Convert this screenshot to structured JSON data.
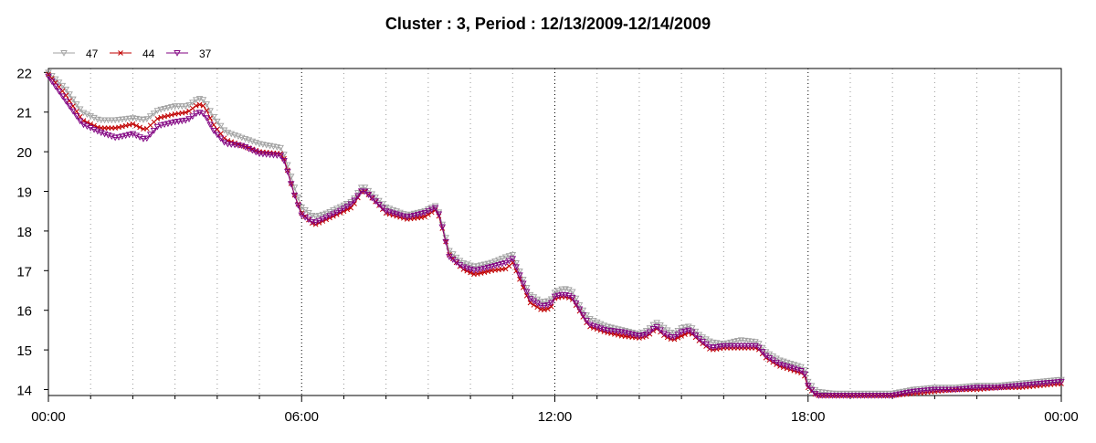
{
  "chart_data": {
    "type": "line",
    "title": "Cluster : 3, Period : 12/13/2009-12/14/2009",
    "xlabel": "",
    "ylabel": "",
    "x_unit": "hours",
    "xlim": [
      0,
      24
    ],
    "ylim": [
      13.85,
      22.1
    ],
    "y_ticks": [
      14,
      15,
      16,
      17,
      18,
      19,
      20,
      21,
      22
    ],
    "x_ticks": [
      {
        "x": 0,
        "label": "00:00"
      },
      {
        "x": 6,
        "label": "06:00"
      },
      {
        "x": 12,
        "label": "12:00"
      },
      {
        "x": 18,
        "label": "18:00"
      },
      {
        "x": 24,
        "label": "00:00"
      }
    ],
    "grid": "dotted",
    "legend_position": "top-left",
    "series": [
      {
        "name": "47",
        "color": "#a0a0a0",
        "marker": "triangle-down",
        "points": [
          [
            0,
            22.0
          ],
          [
            0.4,
            21.6
          ],
          [
            0.8,
            21.0
          ],
          [
            1.2,
            20.8
          ],
          [
            1.6,
            20.8
          ],
          [
            2.0,
            20.85
          ],
          [
            2.3,
            20.8
          ],
          [
            2.6,
            21.05
          ],
          [
            3.0,
            21.15
          ],
          [
            3.3,
            21.15
          ],
          [
            3.55,
            21.35
          ],
          [
            3.7,
            21.3
          ],
          [
            3.9,
            20.9
          ],
          [
            4.2,
            20.5
          ],
          [
            4.6,
            20.35
          ],
          [
            5.0,
            20.2
          ],
          [
            5.5,
            20.1
          ],
          [
            5.6,
            19.9
          ],
          [
            5.8,
            19.2
          ],
          [
            6.0,
            18.6
          ],
          [
            6.3,
            18.35
          ],
          [
            6.6,
            18.45
          ],
          [
            6.9,
            18.6
          ],
          [
            7.2,
            18.75
          ],
          [
            7.45,
            19.15
          ],
          [
            7.7,
            18.9
          ],
          [
            8.0,
            18.6
          ],
          [
            8.5,
            18.4
          ],
          [
            8.9,
            18.5
          ],
          [
            9.2,
            18.65
          ],
          [
            9.3,
            18.3
          ],
          [
            9.5,
            17.5
          ],
          [
            9.8,
            17.2
          ],
          [
            10.1,
            17.1
          ],
          [
            10.5,
            17.2
          ],
          [
            10.85,
            17.35
          ],
          [
            11.0,
            17.4
          ],
          [
            11.2,
            16.9
          ],
          [
            11.4,
            16.4
          ],
          [
            11.7,
            16.2
          ],
          [
            11.9,
            16.25
          ],
          [
            12.0,
            16.45
          ],
          [
            12.2,
            16.55
          ],
          [
            12.4,
            16.5
          ],
          [
            12.6,
            16.1
          ],
          [
            12.8,
            15.8
          ],
          [
            13.2,
            15.6
          ],
          [
            13.6,
            15.5
          ],
          [
            14.0,
            15.4
          ],
          [
            14.2,
            15.5
          ],
          [
            14.4,
            15.7
          ],
          [
            14.6,
            15.55
          ],
          [
            14.8,
            15.4
          ],
          [
            15.0,
            15.55
          ],
          [
            15.2,
            15.6
          ],
          [
            15.45,
            15.35
          ],
          [
            15.7,
            15.2
          ],
          [
            16.0,
            15.15
          ],
          [
            16.4,
            15.25
          ],
          [
            16.8,
            15.2
          ],
          [
            17.0,
            14.95
          ],
          [
            17.3,
            14.75
          ],
          [
            17.6,
            14.65
          ],
          [
            17.9,
            14.55
          ],
          [
            18.0,
            14.2
          ],
          [
            18.2,
            13.95
          ],
          [
            18.6,
            13.9
          ],
          [
            19.0,
            13.9
          ],
          [
            19.5,
            13.9
          ],
          [
            20.0,
            13.9
          ],
          [
            20.5,
            14.0
          ],
          [
            21.0,
            14.05
          ],
          [
            21.5,
            14.05
          ],
          [
            22.0,
            14.1
          ],
          [
            22.5,
            14.1
          ],
          [
            23.0,
            14.15
          ],
          [
            23.5,
            14.2
          ],
          [
            24.0,
            14.25
          ]
        ]
      },
      {
        "name": "44",
        "color": "#c00000",
        "marker": "x",
        "points": [
          [
            0,
            21.95
          ],
          [
            0.4,
            21.45
          ],
          [
            0.8,
            20.8
          ],
          [
            1.2,
            20.6
          ],
          [
            1.6,
            20.6
          ],
          [
            2.0,
            20.7
          ],
          [
            2.3,
            20.55
          ],
          [
            2.6,
            20.85
          ],
          [
            3.0,
            20.95
          ],
          [
            3.3,
            21.0
          ],
          [
            3.55,
            21.2
          ],
          [
            3.7,
            21.15
          ],
          [
            3.9,
            20.7
          ],
          [
            4.2,
            20.3
          ],
          [
            4.6,
            20.15
          ],
          [
            5.0,
            20.0
          ],
          [
            5.5,
            19.95
          ],
          [
            5.6,
            19.8
          ],
          [
            5.8,
            19.0
          ],
          [
            6.0,
            18.45
          ],
          [
            6.3,
            18.15
          ],
          [
            6.6,
            18.3
          ],
          [
            6.9,
            18.45
          ],
          [
            7.2,
            18.6
          ],
          [
            7.45,
            19.05
          ],
          [
            7.7,
            18.8
          ],
          [
            8.0,
            18.45
          ],
          [
            8.5,
            18.3
          ],
          [
            8.9,
            18.35
          ],
          [
            9.2,
            18.55
          ],
          [
            9.3,
            18.2
          ],
          [
            9.5,
            17.4
          ],
          [
            9.8,
            17.05
          ],
          [
            10.1,
            16.9
          ],
          [
            10.5,
            17.0
          ],
          [
            10.85,
            17.05
          ],
          [
            11.0,
            17.2
          ],
          [
            11.2,
            16.7
          ],
          [
            11.4,
            16.2
          ],
          [
            11.7,
            16.0
          ],
          [
            11.9,
            16.05
          ],
          [
            12.0,
            16.3
          ],
          [
            12.2,
            16.35
          ],
          [
            12.4,
            16.3
          ],
          [
            12.6,
            15.95
          ],
          [
            12.8,
            15.6
          ],
          [
            13.2,
            15.45
          ],
          [
            13.6,
            15.35
          ],
          [
            14.0,
            15.3
          ],
          [
            14.2,
            15.35
          ],
          [
            14.4,
            15.55
          ],
          [
            14.6,
            15.35
          ],
          [
            14.8,
            15.25
          ],
          [
            15.0,
            15.35
          ],
          [
            15.2,
            15.45
          ],
          [
            15.45,
            15.2
          ],
          [
            15.7,
            15.0
          ],
          [
            16.0,
            15.05
          ],
          [
            16.4,
            15.05
          ],
          [
            16.8,
            15.05
          ],
          [
            17.0,
            14.8
          ],
          [
            17.3,
            14.6
          ],
          [
            17.6,
            14.5
          ],
          [
            17.9,
            14.4
          ],
          [
            18.0,
            14.05
          ],
          [
            18.2,
            13.85
          ],
          [
            18.6,
            13.85
          ],
          [
            19.0,
            13.85
          ],
          [
            19.5,
            13.85
          ],
          [
            20.0,
            13.85
          ],
          [
            20.5,
            13.9
          ],
          [
            21.0,
            13.95
          ],
          [
            21.5,
            14.0
          ],
          [
            22.0,
            14.0
          ],
          [
            22.5,
            14.05
          ],
          [
            23.0,
            14.05
          ],
          [
            23.5,
            14.1
          ],
          [
            24.0,
            14.15
          ]
        ]
      },
      {
        "name": "37",
        "color": "#800080",
        "marker": "triangle-down",
        "points": [
          [
            0,
            21.9
          ],
          [
            0.4,
            21.3
          ],
          [
            0.8,
            20.7
          ],
          [
            1.2,
            20.5
          ],
          [
            1.6,
            20.35
          ],
          [
            2.0,
            20.45
          ],
          [
            2.3,
            20.3
          ],
          [
            2.6,
            20.65
          ],
          [
            3.0,
            20.75
          ],
          [
            3.3,
            20.8
          ],
          [
            3.55,
            21.0
          ],
          [
            3.7,
            20.95
          ],
          [
            3.9,
            20.55
          ],
          [
            4.2,
            20.2
          ],
          [
            4.6,
            20.15
          ],
          [
            5.0,
            19.95
          ],
          [
            5.5,
            19.9
          ],
          [
            5.6,
            19.75
          ],
          [
            5.8,
            19.0
          ],
          [
            6.0,
            18.4
          ],
          [
            6.3,
            18.2
          ],
          [
            6.6,
            18.35
          ],
          [
            6.9,
            18.5
          ],
          [
            7.2,
            18.7
          ],
          [
            7.45,
            19.05
          ],
          [
            7.7,
            18.8
          ],
          [
            8.0,
            18.5
          ],
          [
            8.5,
            18.35
          ],
          [
            8.9,
            18.45
          ],
          [
            9.2,
            18.6
          ],
          [
            9.3,
            18.25
          ],
          [
            9.5,
            17.35
          ],
          [
            9.8,
            17.1
          ],
          [
            10.1,
            17.0
          ],
          [
            10.5,
            17.1
          ],
          [
            10.85,
            17.2
          ],
          [
            11.0,
            17.3
          ],
          [
            11.2,
            16.8
          ],
          [
            11.4,
            16.3
          ],
          [
            11.7,
            16.1
          ],
          [
            11.9,
            16.15
          ],
          [
            12.0,
            16.35
          ],
          [
            12.2,
            16.4
          ],
          [
            12.4,
            16.35
          ],
          [
            12.6,
            16.0
          ],
          [
            12.8,
            15.65
          ],
          [
            13.2,
            15.5
          ],
          [
            13.6,
            15.45
          ],
          [
            14.0,
            15.35
          ],
          [
            14.2,
            15.4
          ],
          [
            14.4,
            15.6
          ],
          [
            14.6,
            15.4
          ],
          [
            14.8,
            15.3
          ],
          [
            15.0,
            15.45
          ],
          [
            15.2,
            15.5
          ],
          [
            15.45,
            15.25
          ],
          [
            15.7,
            15.05
          ],
          [
            16.0,
            15.1
          ],
          [
            16.4,
            15.1
          ],
          [
            16.8,
            15.1
          ],
          [
            17.0,
            14.85
          ],
          [
            17.3,
            14.65
          ],
          [
            17.6,
            14.55
          ],
          [
            17.9,
            14.45
          ],
          [
            18.0,
            14.1
          ],
          [
            18.2,
            13.85
          ],
          [
            18.6,
            13.85
          ],
          [
            19.0,
            13.85
          ],
          [
            19.5,
            13.85
          ],
          [
            20.0,
            13.85
          ],
          [
            20.5,
            13.95
          ],
          [
            21.0,
            14.0
          ],
          [
            21.5,
            14.0
          ],
          [
            22.0,
            14.05
          ],
          [
            22.5,
            14.05
          ],
          [
            23.0,
            14.1
          ],
          [
            23.5,
            14.15
          ],
          [
            24.0,
            14.2
          ]
        ]
      }
    ]
  }
}
